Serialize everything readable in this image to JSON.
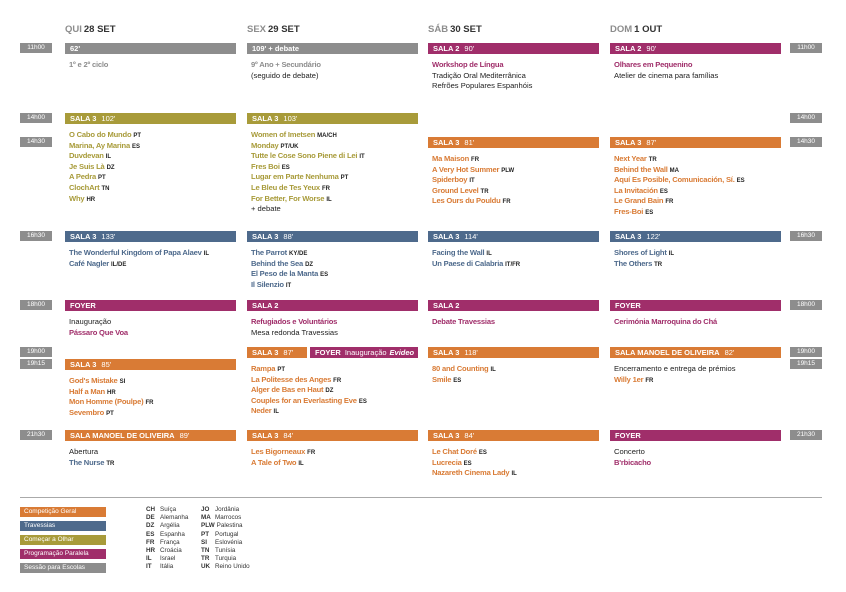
{
  "days": [
    {
      "weekday": "QUI",
      "date": "28 SET"
    },
    {
      "weekday": "SEX",
      "date": "29 SET"
    },
    {
      "weekday": "SÁB",
      "date": "30 SET"
    },
    {
      "weekday": "DOM",
      "date": "1 OUT"
    }
  ],
  "rows": [
    {
      "time": "11h00",
      "cells": [
        {
          "color": "#8d8d8d",
          "header": {
            "duration": "62'"
          },
          "items": [
            {
              "title": "1º e 2º ciclo"
            }
          ]
        },
        {
          "color": "#8d8d8d",
          "header": {
            "duration": "109' + debate"
          },
          "items": [
            {
              "title": "9º Ano + Secundário"
            },
            {
              "text": "(seguido de debate)"
            }
          ]
        },
        {
          "color": "#a02e6a",
          "header": {
            "venue": "SALA 2",
            "duration": "90'"
          },
          "items": [
            {
              "title": "Workshop de Língua"
            },
            {
              "text": "Tradição Oral Mediterrânica"
            },
            {
              "text": "Refrões Populares Espanhóis"
            }
          ]
        },
        {
          "color": "#a02e6a",
          "header": {
            "venue": "SALA 2",
            "duration": "90'"
          },
          "items": [
            {
              "title": "Olhares em Pequenino"
            },
            {
              "text": "Atelier de cinema para famílias"
            }
          ]
        }
      ]
    },
    {
      "time": "14h00",
      "cells": [
        {
          "color": "#a89b3a",
          "header": {
            "venue": "SALA 3",
            "duration": "102'"
          },
          "items": [
            {
              "title": "O Cabo do Mundo",
              "country": "PT"
            },
            {
              "title": "Marina, Ay Marina",
              "country": "ES"
            },
            {
              "title": "Duvdevan",
              "country": "IL"
            },
            {
              "title": "Je Suis Là",
              "country": "DZ"
            },
            {
              "title": "A Pedra",
              "country": "PT"
            },
            {
              "title": "ClochArt",
              "country": "TN"
            },
            {
              "title": "Why",
              "country": "HR"
            }
          ]
        },
        {
          "color": "#a89b3a",
          "header": {
            "venue": "SALA 3",
            "duration": "103'"
          },
          "items": [
            {
              "title": "Women of Imetsen",
              "country": "MA/CH"
            },
            {
              "title": "Monday",
              "country": "PT/UK"
            },
            {
              "title": "Tutte le Cose Sono Piene di Lei",
              "country": "IT"
            },
            {
              "title": "Fres Boi",
              "country": "ES"
            },
            {
              "title": "Lugar em Parte Nenhuma",
              "country": "PT"
            },
            {
              "title": "Le Bleu de Tes Yeux",
              "country": "FR"
            },
            {
              "title": "For Better, For Worse",
              "country": "IL"
            },
            {
              "text": "+ debate"
            }
          ]
        },
        null,
        null
      ]
    },
    {
      "time": "14h30",
      "cells": [
        null,
        null,
        {
          "color": "#d97b35",
          "header": {
            "venue": "SALA 3",
            "duration": "81'"
          },
          "items": [
            {
              "title": "Ma Maison",
              "country": "FR"
            },
            {
              "title": "A Very Hot Summer",
              "country": "PLW"
            },
            {
              "title": "Spiderboy",
              "country": "IT"
            },
            {
              "title": "Ground Level",
              "country": "TR"
            },
            {
              "title": "Les Ours du Pouldu",
              "country": "FR"
            }
          ]
        },
        {
          "color": "#d97b35",
          "header": {
            "venue": "SALA 3",
            "duration": "87'"
          },
          "items": [
            {
              "title": "Next Year",
              "country": "TR"
            },
            {
              "title": "Behind the Wall",
              "country": "MA"
            },
            {
              "title": "Aquí Es Posible, Comunicación, Sí.",
              "country": "ES"
            },
            {
              "title": "La Invitación",
              "country": "ES"
            },
            {
              "title": "Le Grand Bain",
              "country": "FR"
            },
            {
              "title": "Fres-Boi",
              "country": "ES"
            }
          ]
        }
      ]
    },
    {
      "time": "16h30",
      "cells": [
        {
          "color": "#4e6a8c",
          "header": {
            "venue": "SALA 3",
            "duration": "133'"
          },
          "items": [
            {
              "title": "The Wonderful Kingdom of Papa Alaev",
              "country": "IL"
            },
            {
              "title": "Café Nagler",
              "country": "IL/DE"
            }
          ]
        },
        {
          "color": "#4e6a8c",
          "header": {
            "venue": "SALA 3",
            "duration": "88'"
          },
          "items": [
            {
              "title": "The Parrot",
              "country": "KY/DE"
            },
            {
              "title": "Behind the Sea",
              "country": "DZ"
            },
            {
              "title": "El Peso de la Manta",
              "country": "ES"
            },
            {
              "title": "Il Silenzio",
              "country": "IT"
            }
          ]
        },
        {
          "color": "#4e6a8c",
          "header": {
            "venue": "SALA 3",
            "duration": "114'"
          },
          "items": [
            {
              "title": "Facing the Wall",
              "country": "IL"
            },
            {
              "title": "Un Paese di Calabria",
              "country": "IT/FR"
            }
          ]
        },
        {
          "color": "#4e6a8c",
          "header": {
            "venue": "SALA 3",
            "duration": "122'"
          },
          "items": [
            {
              "title": "Shores of Light",
              "country": "IL"
            },
            {
              "title": "The Others",
              "country": "TR"
            }
          ]
        }
      ]
    },
    {
      "time": "18h00",
      "cells": [
        {
          "color": "#a02e6a",
          "header": {
            "venue": "FOYER"
          },
          "items": [
            {
              "text": "Inauguração"
            },
            {
              "title": "Pássaro Que Voa"
            }
          ]
        },
        {
          "color": "#a02e6a",
          "header": {
            "venue": "SALA 2"
          },
          "items": [
            {
              "title": "Refugiados e Voluntários"
            },
            {
              "text": "Mesa redonda Travessias"
            }
          ]
        },
        {
          "color": "#a02e6a",
          "header": {
            "venue": "SALA 2"
          },
          "items": [
            {
              "title": "Debate Travessias"
            }
          ]
        },
        {
          "color": "#a02e6a",
          "header": {
            "venue": "FOYER"
          },
          "items": [
            {
              "title": "Cerimónia Marroquina do Chá"
            }
          ]
        }
      ]
    },
    {
      "time": "19h00",
      "cells": [
        null,
        {
          "color": "#d97b35",
          "header": {
            "venue": "SALA 3",
            "duration": "87'"
          },
          "header2": {
            "color": "#a02e6a",
            "venue": "FOYER",
            "extra": "Inauguração",
            "extra_italic": "Evideo"
          },
          "items": [
            {
              "title": "Rampa",
              "country": "PT"
            },
            {
              "title": "La Politesse des Anges",
              "country": "FR"
            },
            {
              "title": "Alger de Bas en Haut",
              "country": "DZ"
            },
            {
              "title": "Couples for an Everlasting Eve",
              "country": "ES"
            },
            {
              "title": "Neder",
              "country": "IL"
            }
          ]
        },
        {
          "color": "#d97b35",
          "header": {
            "venue": "SALA 3",
            "duration": "118'"
          },
          "items": [
            {
              "title": "80 and Counting",
              "country": "IL"
            },
            {
              "title": "Smile",
              "country": "ES"
            }
          ]
        },
        {
          "color": "#d97b35",
          "header": {
            "venue": "SALA MANOEL DE OLIVEIRA",
            "duration": "82'"
          },
          "items": [
            {
              "text": "Encerramento e entrega de prémios"
            },
            {
              "title": "Willy 1er",
              "country": "FR"
            }
          ]
        }
      ]
    },
    {
      "time": "19h15",
      "cells": [
        {
          "color": "#d97b35",
          "header": {
            "venue": "SALA 3",
            "duration": "85'"
          },
          "items": [
            {
              "title": "God's Mistake",
              "country": "SI"
            },
            {
              "title": "Half a Man",
              "country": "HR"
            },
            {
              "title": "Mon Homme (Poulpe)",
              "country": "FR"
            },
            {
              "title": "Sevembro",
              "country": "PT"
            }
          ]
        },
        null,
        null,
        null
      ]
    },
    {
      "time": "21h30",
      "cells": [
        {
          "color": "#d97b35",
          "header": {
            "venue": "SALA MANOEL DE OLIVEIRA",
            "duration": "89'"
          },
          "items": [
            {
              "text": "Abertura"
            },
            {
              "title": "The Nurse",
              "country": "TR",
              "color": "#4e6a8c"
            }
          ]
        },
        {
          "color": "#d97b35",
          "header": {
            "venue": "SALA 3",
            "duration": "84'"
          },
          "items": [
            {
              "title": "Les Bigorneaux",
              "country": "FR"
            },
            {
              "title": "A Tale of Two",
              "country": "IL"
            }
          ]
        },
        {
          "color": "#d97b35",
          "header": {
            "venue": "SALA 3",
            "duration": "84'"
          },
          "items": [
            {
              "title": "Le Chat Doré",
              "country": "ES"
            },
            {
              "title": "Lucrecia",
              "country": "ES"
            },
            {
              "title": "Nazareth Cinema Lady",
              "country": "IL"
            }
          ]
        },
        {
          "color": "#a02e6a",
          "header": {
            "venue": "FOYER"
          },
          "items": [
            {
              "text": "Concerto"
            },
            {
              "title": "B'rbicacho"
            }
          ]
        }
      ]
    }
  ],
  "legend": [
    {
      "label": "Competição Geral",
      "color": "#d97b35"
    },
    {
      "label": "Travessias",
      "color": "#4e6a8c"
    },
    {
      "label": "Começar a Olhar",
      "color": "#a89b3a"
    },
    {
      "label": "Programação Paralela",
      "color": "#a02e6a"
    },
    {
      "label": "Sessão para Escolas",
      "color": "#8d8d8d"
    }
  ],
  "countries": [
    [
      {
        "code": "CH",
        "name": "Suíça"
      },
      {
        "code": "DE",
        "name": "Alemanha"
      },
      {
        "code": "DZ",
        "name": "Argélia"
      },
      {
        "code": "ES",
        "name": "Espanha"
      },
      {
        "code": "FR",
        "name": "França"
      },
      {
        "code": "HR",
        "name": "Croácia"
      },
      {
        "code": "IL",
        "name": "Israel"
      },
      {
        "code": "IT",
        "name": "Itália"
      }
    ],
    [
      {
        "code": "JO",
        "name": "Jordânia"
      },
      {
        "code": "MA",
        "name": "Marrocos"
      },
      {
        "code": "PLW",
        "name": "Palestina"
      },
      {
        "code": "PT",
        "name": "Portugal"
      },
      {
        "code": "SI",
        "name": "Eslovénia"
      },
      {
        "code": "TN",
        "name": "Tunísia"
      },
      {
        "code": "TR",
        "name": "Turquia"
      },
      {
        "code": "UK",
        "name": "Reino Unido"
      }
    ]
  ]
}
